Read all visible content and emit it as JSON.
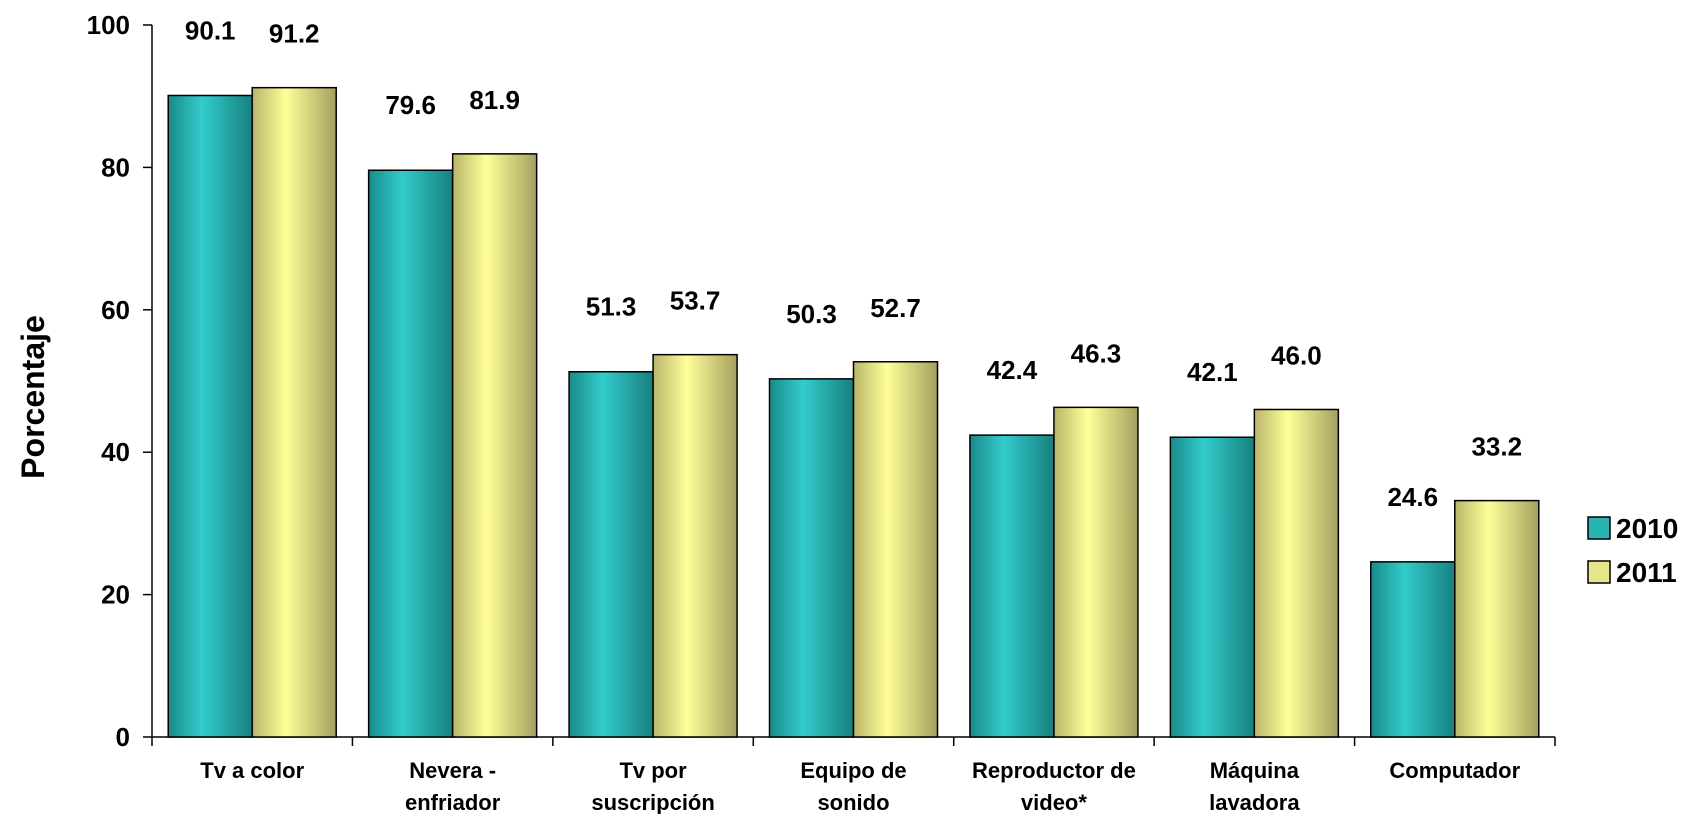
{
  "chart_data": {
    "type": "bar",
    "title": "",
    "xlabel": "",
    "ylabel": "Porcentaje",
    "ylim": [
      0,
      100
    ],
    "yticks": [
      0,
      20,
      40,
      60,
      80,
      100
    ],
    "grid": false,
    "legend_position": "right",
    "categories": [
      [
        "Tv a color"
      ],
      [
        "Nevera -",
        "enfriador"
      ],
      [
        "Tv por",
        "suscripción"
      ],
      [
        "Equipo de",
        "sonido"
      ],
      [
        "Reproductor de",
        "video*"
      ],
      [
        "Máquina",
        "lavadora"
      ],
      [
        "Computador"
      ]
    ],
    "series": [
      {
        "name": "2010",
        "color": "#2ab3b3",
        "values": [
          90.1,
          79.6,
          51.3,
          50.3,
          42.4,
          42.1,
          24.6
        ]
      },
      {
        "name": "2011",
        "color": "#e6e68a",
        "values": [
          91.2,
          81.9,
          53.7,
          52.7,
          46.3,
          46.0,
          33.2
        ]
      }
    ]
  }
}
